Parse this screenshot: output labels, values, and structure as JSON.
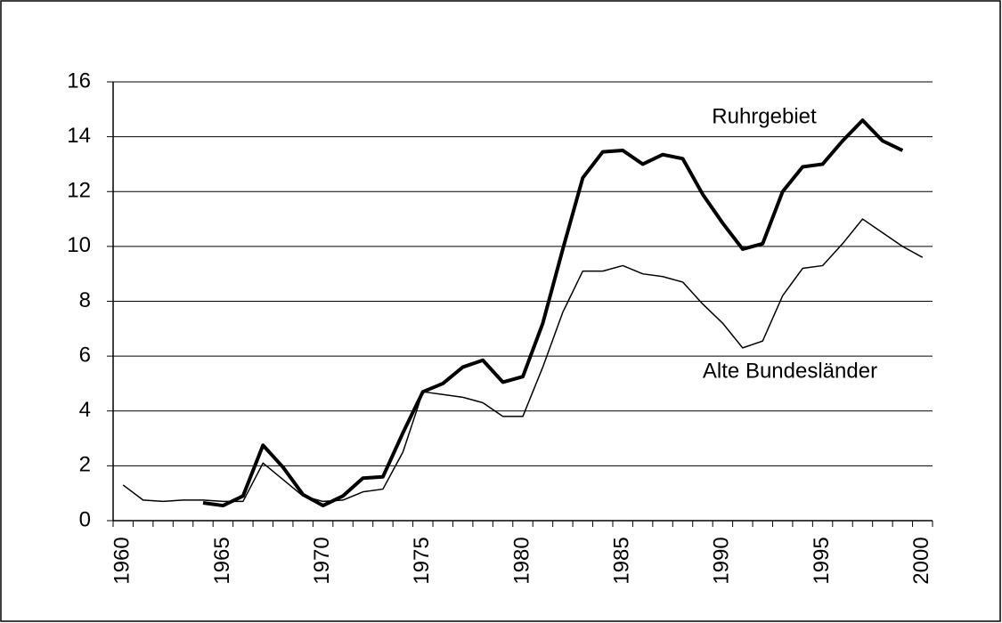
{
  "chart_data": {
    "type": "line",
    "categories": [
      "1960",
      null,
      null,
      null,
      null,
      "1965",
      null,
      null,
      null,
      null,
      "1970",
      null,
      null,
      null,
      null,
      "1975",
      null,
      null,
      null,
      null,
      "1980",
      null,
      null,
      null,
      null,
      "1985",
      null,
      null,
      null,
      null,
      "1990",
      null,
      null,
      null,
      null,
      "1995",
      null,
      null,
      null,
      null,
      "2000"
    ],
    "series": [
      {
        "name": "Ruhrgebiet",
        "color": "#000000",
        "values": [
          null,
          null,
          null,
          null,
          0.65,
          0.55,
          0.9,
          2.75,
          1.95,
          0.95,
          0.55,
          0.9,
          1.55,
          1.6,
          3.2,
          4.7,
          5.0,
          5.6,
          5.85,
          5.05,
          5.25,
          7.2,
          9.9,
          12.5,
          13.45,
          13.5,
          13.0,
          13.35,
          13.2,
          11.9,
          10.85,
          9.9,
          10.1,
          12.0,
          12.9,
          13.0,
          13.85,
          14.6,
          13.85,
          13.5,
          null
        ]
      },
      {
        "name": "Alte Bundesländer",
        "color": "#000000",
        "values": [
          1.3,
          0.75,
          0.7,
          0.75,
          0.75,
          0.7,
          0.7,
          2.1,
          1.5,
          0.9,
          0.7,
          0.75,
          1.05,
          1.15,
          2.5,
          4.7,
          4.6,
          4.5,
          4.3,
          3.8,
          3.8,
          5.6,
          7.6,
          9.1,
          9.1,
          9.3,
          9.0,
          8.9,
          8.7,
          7.9,
          7.2,
          6.3,
          6.55,
          8.2,
          9.2,
          9.3,
          10.1,
          11.0,
          10.5,
          10.0,
          9.6
        ]
      }
    ],
    "ylim": [
      0,
      16
    ],
    "yticks": [
      0,
      2,
      4,
      6,
      8,
      10,
      12,
      14,
      16
    ],
    "grid": true
  }
}
